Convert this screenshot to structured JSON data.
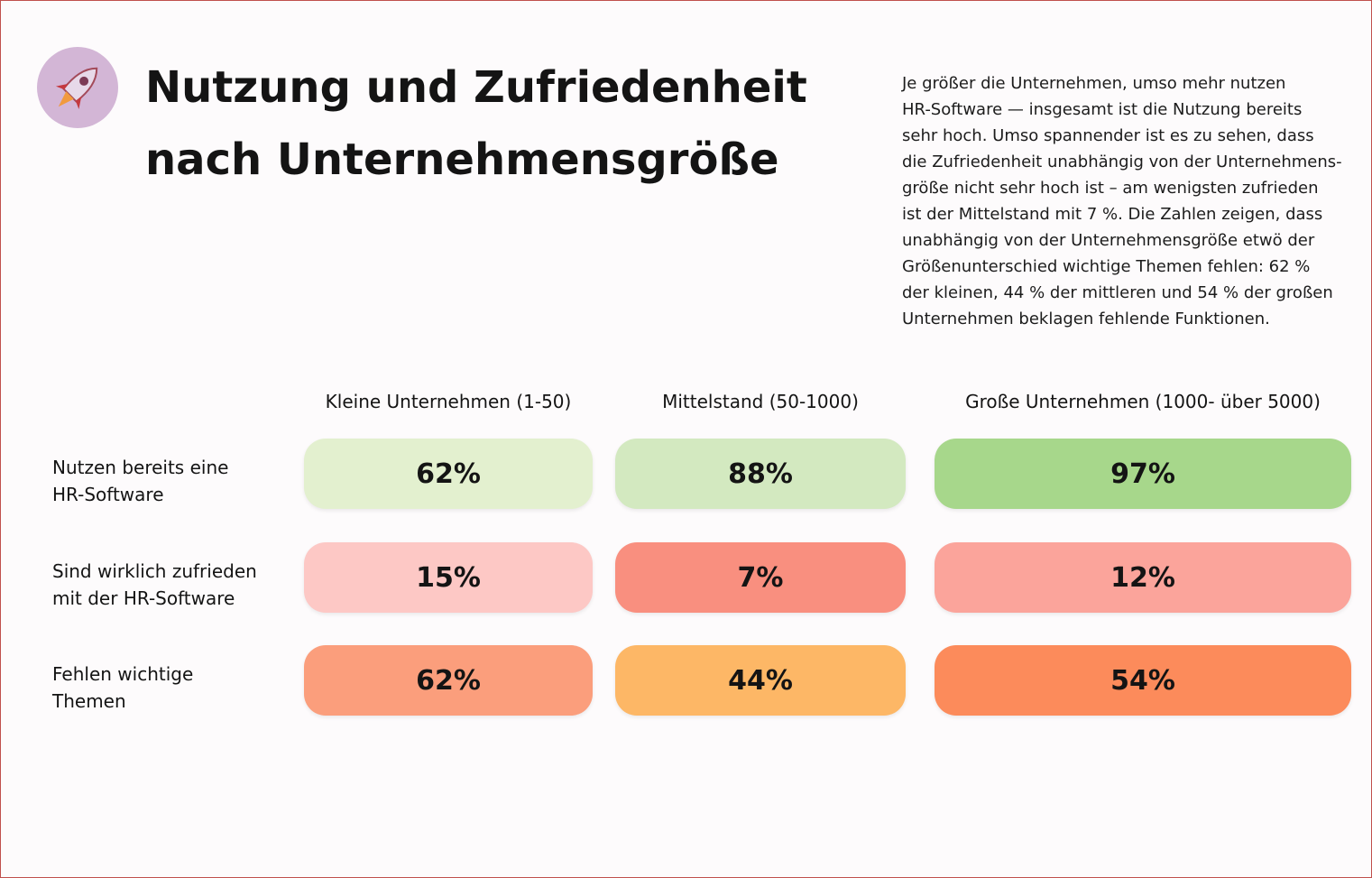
{
  "header": {
    "title_lines": [
      "Nutzung und Zufriedenheit",
      "nach Unternehmensgröße"
    ],
    "description_lines": [
      "Je größer die Unternehmen, umso mehr nutzen",
      "HR-Software — insgesamt ist die Nutzung bereits",
      "sehr hoch. Umso spannender ist es zu sehen, dass",
      "die Zufriedenheit unabhängig von der Unternehmens-",
      "größe nicht sehr hoch ist – am wenigsten zufrieden",
      "ist der Mittelstand mit 7 %. Die Zahlen zeigen, dass",
      "unabhängig von der Unternehmensgröße etwö der",
      "Größenunterschied wichtige Themen fehlen: 62 %",
      "der kleinen, 44 % der mittleren und 54 % der großen",
      "Unternehmen beklagen fehlende Funktionen."
    ]
  },
  "table": {
    "columns": [
      "Kleine Unternehmen (1-50)",
      "Mittelstand (50-1000)",
      "Große Unternehmen (1000- über 5000)"
    ],
    "rows": [
      {
        "label_lines": [
          "Nutzen bereits eine",
          "HR-Software"
        ],
        "cells": [
          {
            "text": "62%",
            "color": "#e3f0cf"
          },
          {
            "text": "88%",
            "color": "#d3e9c0"
          },
          {
            "text": "97%",
            "color": "#a7d78b"
          }
        ]
      },
      {
        "label_lines": [
          "Sind wirklich zufrieden",
          "mit der HR-Software"
        ],
        "cells": [
          {
            "text": "15%",
            "color": "#fdc8c5"
          },
          {
            "text": "7%",
            "color": "#f98f7f"
          },
          {
            "text": "12%",
            "color": "#fba49b"
          }
        ]
      },
      {
        "label_lines": [
          "Fehlen wichtige",
          "Themen"
        ],
        "cells": [
          {
            "text": "62%",
            "color": "#fb9e7c"
          },
          {
            "text": "44%",
            "color": "#fdb766"
          },
          {
            "text": "54%",
            "color": "#fc8b5b"
          }
        ]
      }
    ]
  }
}
